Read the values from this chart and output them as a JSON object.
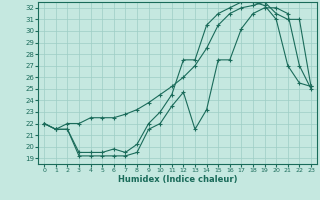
{
  "xlabel": "Humidex (Indice chaleur)",
  "bg_color": "#c5e8e0",
  "line_color": "#1a6b5a",
  "grid_color": "#9ecec5",
  "xlim": [
    -0.5,
    23.5
  ],
  "ylim": [
    18.5,
    32.5
  ],
  "yticks": [
    19,
    20,
    21,
    22,
    23,
    24,
    25,
    26,
    27,
    28,
    29,
    30,
    31,
    32
  ],
  "xticks": [
    0,
    1,
    2,
    3,
    4,
    5,
    6,
    7,
    8,
    9,
    10,
    11,
    12,
    13,
    14,
    15,
    16,
    17,
    18,
    19,
    20,
    21,
    22,
    23
  ],
  "line1_x": [
    0,
    1,
    2,
    3,
    4,
    5,
    6,
    7,
    8,
    9,
    10,
    11,
    12,
    13,
    14,
    15,
    16,
    17,
    18,
    19,
    20,
    21,
    22,
    23
  ],
  "line1_y": [
    22.0,
    21.5,
    21.5,
    19.2,
    19.2,
    19.2,
    19.2,
    19.2,
    19.5,
    21.5,
    22.0,
    23.5,
    24.7,
    21.5,
    23.2,
    27.5,
    27.5,
    30.2,
    31.5,
    32.0,
    32.0,
    31.5,
    27.0,
    25.0
  ],
  "line2_x": [
    0,
    1,
    2,
    3,
    4,
    5,
    6,
    7,
    8,
    9,
    10,
    11,
    12,
    13,
    14,
    15,
    16,
    17,
    18,
    19,
    20,
    21,
    22,
    23
  ],
  "line2_y": [
    22.0,
    21.5,
    22.0,
    22.0,
    22.5,
    22.5,
    22.5,
    22.8,
    23.2,
    23.8,
    24.5,
    25.2,
    26.0,
    27.0,
    28.5,
    30.5,
    31.5,
    32.0,
    32.2,
    32.5,
    31.5,
    31.0,
    31.0,
    25.2
  ],
  "line3_x": [
    0,
    1,
    2,
    3,
    4,
    5,
    6,
    7,
    8,
    9,
    10,
    11,
    12,
    13,
    14,
    15,
    16,
    17,
    18,
    19,
    20,
    21,
    22,
    23
  ],
  "line3_y": [
    22.0,
    21.5,
    21.5,
    19.5,
    19.5,
    19.5,
    19.8,
    19.5,
    20.2,
    22.0,
    23.0,
    24.5,
    27.5,
    27.5,
    30.5,
    31.5,
    32.0,
    32.5,
    32.5,
    32.2,
    31.0,
    27.0,
    25.5,
    25.2
  ]
}
